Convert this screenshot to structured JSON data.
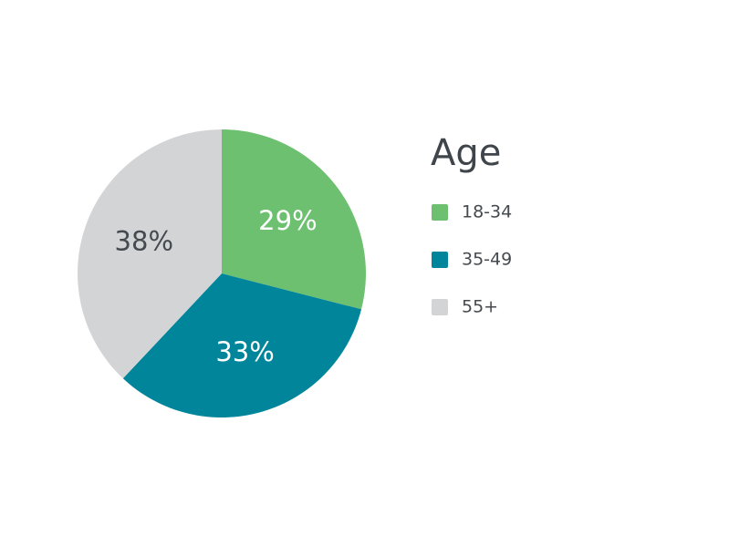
{
  "chart_data": {
    "type": "pie",
    "legend_title": "Age",
    "categories": [
      "18-34",
      "35-49",
      "55+"
    ],
    "values": [
      29,
      33,
      38
    ],
    "value_labels": [
      "29%",
      "33%",
      "38%"
    ],
    "colors": [
      "#6cc070",
      "#00859b",
      "#d3d4d6"
    ],
    "label_colors": [
      "#ffffff",
      "#ffffff",
      "#444a4f"
    ],
    "legend": "right"
  }
}
